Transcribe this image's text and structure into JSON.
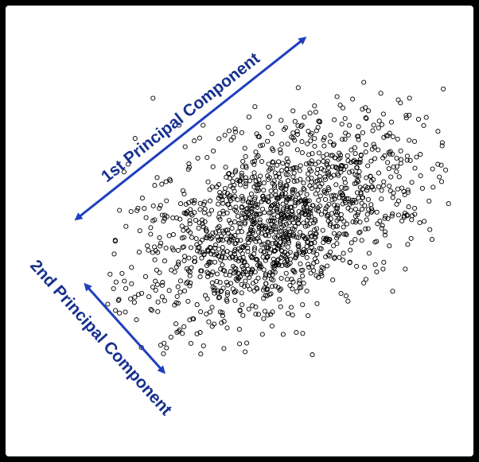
{
  "labels": {
    "pc1": "1st Principal Component",
    "pc2": "2nd Principal Component"
  },
  "colors": {
    "arrow": "#1f3fbf",
    "label": "#17308f",
    "points": "#000000",
    "background": "#ffffff",
    "frame": "#000000"
  },
  "chart_data": {
    "type": "scatter",
    "marker": "open-circle",
    "point_count_approx": 1500,
    "distribution": "bivariate-normal, elongated along the first principal component"
  }
}
